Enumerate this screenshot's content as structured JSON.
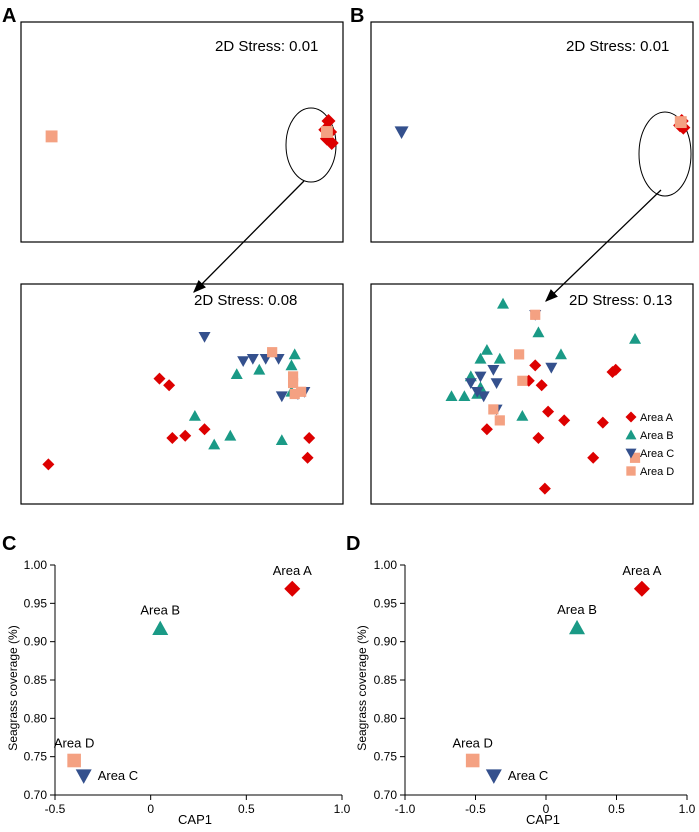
{
  "figure": {
    "panel_letters": [
      "A",
      "B",
      "C",
      "D"
    ],
    "stress_labels": {
      "a_top": "2D Stress: 0.01",
      "b_top": "2D Stress: 0.01",
      "a_bottom": "2D Stress: 0.08",
      "b_bottom": "2D Stress: 0.13"
    }
  },
  "groups": [
    {
      "name": "Area A",
      "shape": "diamond",
      "color": "#DD0000"
    },
    {
      "name": "Area B",
      "shape": "triangle-up",
      "color": "#1A9A86"
    },
    {
      "name": "Area C",
      "shape": "triangle-down",
      "color": "#34508D"
    },
    {
      "name": "Area D",
      "shape": "square",
      "color": "#F4A182"
    }
  ],
  "chart_data": [
    {
      "panel": "A-top",
      "type": "scatter",
      "title": "2D Stress: 0.01",
      "xlim": [
        0,
        1
      ],
      "ylim": [
        0,
        1
      ],
      "points": [
        {
          "g": 3,
          "x": 0.095,
          "y": 0.48
        },
        {
          "g": 0,
          "x": 0.955,
          "y": 0.55
        },
        {
          "g": 0,
          "x": 0.96,
          "y": 0.5
        },
        {
          "g": 0,
          "x": 0.95,
          "y": 0.47
        },
        {
          "g": 0,
          "x": 0.965,
          "y": 0.45
        },
        {
          "g": 0,
          "x": 0.945,
          "y": 0.51
        },
        {
          "g": 3,
          "x": 0.95,
          "y": 0.5
        }
      ]
    },
    {
      "panel": "B-top",
      "type": "scatter",
      "title": "2D Stress: 0.01",
      "xlim": [
        0,
        1
      ],
      "ylim": [
        0,
        1
      ],
      "points": [
        {
          "g": 2,
          "x": 0.095,
          "y": 0.5
        },
        {
          "g": 0,
          "x": 0.965,
          "y": 0.55
        },
        {
          "g": 0,
          "x": 0.96,
          "y": 0.53
        },
        {
          "g": 0,
          "x": 0.97,
          "y": 0.52
        },
        {
          "g": 3,
          "x": 0.962,
          "y": 0.545
        }
      ]
    },
    {
      "panel": "A-bottom",
      "type": "scatter",
      "title": "2D Stress: 0.08",
      "xlim": [
        0,
        1
      ],
      "ylim": [
        0,
        1
      ],
      "points": [
        {
          "g": 0,
          "x": 0.43,
          "y": 0.57
        },
        {
          "g": 0,
          "x": 0.46,
          "y": 0.54
        },
        {
          "g": 0,
          "x": 0.47,
          "y": 0.3
        },
        {
          "g": 0,
          "x": 0.51,
          "y": 0.31
        },
        {
          "g": 0,
          "x": 0.57,
          "y": 0.34
        },
        {
          "g": 0,
          "x": 0.085,
          "y": 0.18
        },
        {
          "g": 0,
          "x": 0.895,
          "y": 0.3
        },
        {
          "g": 0,
          "x": 0.89,
          "y": 0.21
        },
        {
          "g": 1,
          "x": 0.6,
          "y": 0.27
        },
        {
          "g": 1,
          "x": 0.65,
          "y": 0.31
        },
        {
          "g": 1,
          "x": 0.67,
          "y": 0.59
        },
        {
          "g": 1,
          "x": 0.74,
          "y": 0.61
        },
        {
          "g": 1,
          "x": 0.81,
          "y": 0.29
        },
        {
          "g": 1,
          "x": 0.85,
          "y": 0.68
        },
        {
          "g": 1,
          "x": 0.84,
          "y": 0.63
        },
        {
          "g": 1,
          "x": 0.84,
          "y": 0.51
        },
        {
          "g": 1,
          "x": 0.54,
          "y": 0.4
        },
        {
          "g": 2,
          "x": 0.57,
          "y": 0.76
        },
        {
          "g": 2,
          "x": 0.69,
          "y": 0.65
        },
        {
          "g": 2,
          "x": 0.72,
          "y": 0.66
        },
        {
          "g": 2,
          "x": 0.76,
          "y": 0.66
        },
        {
          "g": 2,
          "x": 0.8,
          "y": 0.66
        },
        {
          "g": 2,
          "x": 0.81,
          "y": 0.49
        },
        {
          "g": 2,
          "x": 0.86,
          "y": 0.5
        },
        {
          "g": 2,
          "x": 0.88,
          "y": 0.51
        },
        {
          "g": 3,
          "x": 0.78,
          "y": 0.69
        },
        {
          "g": 3,
          "x": 0.845,
          "y": 0.58
        },
        {
          "g": 3,
          "x": 0.845,
          "y": 0.55
        },
        {
          "g": 3,
          "x": 0.87,
          "y": 0.51
        },
        {
          "g": 3,
          "x": 0.85,
          "y": 0.5
        }
      ]
    },
    {
      "panel": "B-bottom",
      "type": "scatter",
      "title": "2D Stress: 0.13",
      "xlim": [
        0,
        1
      ],
      "ylim": [
        0,
        1
      ],
      "points": [
        {
          "g": 0,
          "x": 0.51,
          "y": 0.63
        },
        {
          "g": 0,
          "x": 0.49,
          "y": 0.56
        },
        {
          "g": 0,
          "x": 0.53,
          "y": 0.54
        },
        {
          "g": 0,
          "x": 0.55,
          "y": 0.42
        },
        {
          "g": 0,
          "x": 0.6,
          "y": 0.38
        },
        {
          "g": 0,
          "x": 0.36,
          "y": 0.34
        },
        {
          "g": 0,
          "x": 0.52,
          "y": 0.3
        },
        {
          "g": 0,
          "x": 0.72,
          "y": 0.37
        },
        {
          "g": 0,
          "x": 0.75,
          "y": 0.6
        },
        {
          "g": 0,
          "x": 0.76,
          "y": 0.61
        },
        {
          "g": 0,
          "x": 0.69,
          "y": 0.21
        },
        {
          "g": 0,
          "x": 0.54,
          "y": 0.07
        },
        {
          "g": 1,
          "x": 0.41,
          "y": 0.91
        },
        {
          "g": 1,
          "x": 0.52,
          "y": 0.78
        },
        {
          "g": 1,
          "x": 0.59,
          "y": 0.68
        },
        {
          "g": 1,
          "x": 0.36,
          "y": 0.7
        },
        {
          "g": 1,
          "x": 0.34,
          "y": 0.66
        },
        {
          "g": 1,
          "x": 0.4,
          "y": 0.66
        },
        {
          "g": 1,
          "x": 0.25,
          "y": 0.49
        },
        {
          "g": 1,
          "x": 0.29,
          "y": 0.49
        },
        {
          "g": 1,
          "x": 0.33,
          "y": 0.5
        },
        {
          "g": 1,
          "x": 0.34,
          "y": 0.53
        },
        {
          "g": 1,
          "x": 0.47,
          "y": 0.4
        },
        {
          "g": 1,
          "x": 0.82,
          "y": 0.75
        },
        {
          "g": 1,
          "x": 0.31,
          "y": 0.58
        },
        {
          "g": 2,
          "x": 0.51,
          "y": 0.86
        },
        {
          "g": 2,
          "x": 0.31,
          "y": 0.55
        },
        {
          "g": 2,
          "x": 0.34,
          "y": 0.58
        },
        {
          "g": 2,
          "x": 0.35,
          "y": 0.49
        },
        {
          "g": 2,
          "x": 0.39,
          "y": 0.55
        },
        {
          "g": 2,
          "x": 0.38,
          "y": 0.61
        },
        {
          "g": 2,
          "x": 0.56,
          "y": 0.62
        },
        {
          "g": 2,
          "x": 0.39,
          "y": 0.43
        },
        {
          "g": 2,
          "x": 0.33,
          "y": 0.51
        },
        {
          "g": 3,
          "x": 0.51,
          "y": 0.86
        },
        {
          "g": 3,
          "x": 0.46,
          "y": 0.68
        },
        {
          "g": 3,
          "x": 0.47,
          "y": 0.56
        },
        {
          "g": 3,
          "x": 0.38,
          "y": 0.43
        },
        {
          "g": 3,
          "x": 0.4,
          "y": 0.38
        },
        {
          "g": 3,
          "x": 0.82,
          "y": 0.21
        }
      ],
      "legend": {
        "location": "lower-right",
        "entries": [
          "Area A",
          "Area B",
          "Area C",
          "Area D"
        ]
      }
    },
    {
      "panel": "C",
      "type": "scatter",
      "xlabel": "CAP1",
      "ylabel": "Seagrass coverage (%)",
      "xlim": [
        -0.5,
        1.0
      ],
      "ylim": [
        0.7,
        1.0
      ],
      "xticks": [
        -0.5,
        0,
        0.5,
        1.0
      ],
      "xtick_labels": [
        "-0.5",
        "0",
        "0.5",
        "1.0"
      ],
      "yticks": [
        0.7,
        0.75,
        0.8,
        0.85,
        0.9,
        0.95,
        1.0
      ],
      "ytick_labels": [
        "0.70",
        "0.75",
        "0.80",
        "0.85",
        "0.90",
        "0.95",
        "1.00"
      ],
      "points": [
        {
          "label": "Area A",
          "g": 0,
          "x": 0.74,
          "y": 0.969
        },
        {
          "label": "Area B",
          "g": 1,
          "x": 0.05,
          "y": 0.917
        },
        {
          "label": "Area D",
          "g": 3,
          "x": -0.4,
          "y": 0.745
        },
        {
          "label": "Area C",
          "g": 2,
          "x": -0.35,
          "y": 0.725
        }
      ]
    },
    {
      "panel": "D",
      "type": "scatter",
      "xlabel": "CAP1",
      "ylabel": "Seagrass coverage (%)",
      "xlim": [
        -1.0,
        1.0
      ],
      "ylim": [
        0.7,
        1.0
      ],
      "xticks": [
        -1.0,
        -0.5,
        0,
        0.5,
        1.0
      ],
      "xtick_labels": [
        "-1.0",
        "-0.5",
        "0",
        "0.5",
        "1.0"
      ],
      "yticks": [
        0.7,
        0.75,
        0.8,
        0.85,
        0.9,
        0.95,
        1.0
      ],
      "ytick_labels": [
        "0.70",
        "0.75",
        "0.80",
        "0.85",
        "0.90",
        "0.95",
        "1.00"
      ],
      "points": [
        {
          "label": "Area A",
          "g": 0,
          "x": 0.68,
          "y": 0.969
        },
        {
          "label": "Area B",
          "g": 1,
          "x": 0.22,
          "y": 0.918
        },
        {
          "label": "Area D",
          "g": 3,
          "x": -0.52,
          "y": 0.745
        },
        {
          "label": "Area C",
          "g": 2,
          "x": -0.37,
          "y": 0.725
        }
      ]
    }
  ]
}
